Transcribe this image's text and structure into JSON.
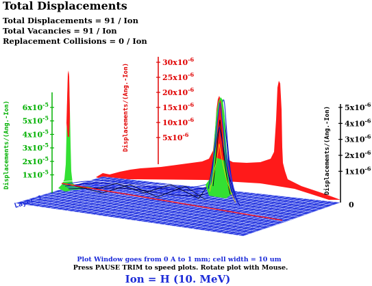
{
  "header": {
    "title": "Total Displacements",
    "stats": [
      "Total Displacements = 91 / Ion",
      "Total Vacancies = 91 / Ion",
      "Replacement Collisions = 0 / Ion"
    ]
  },
  "plot": {
    "left_axis": {
      "label": "Displacements/(Ang.-Ion)",
      "ticks": [
        "6x10",
        "5x10",
        "4x10",
        "3x10",
        "2x10",
        "1x10"
      ],
      "exponent": "-5",
      "color": "#00b000"
    },
    "back_axis": {
      "label": "Displacements/(Ang.-Ion)",
      "ticks": [
        "30x10",
        "25x10",
        "20x10",
        "15x10",
        "10x10",
        "5x10"
      ],
      "exponent": "-6",
      "color": "#e00000"
    },
    "right_axis": {
      "label": "Displacements/(Ang.-Ion)",
      "ticks": [
        "5x10",
        "4x10",
        "3x10",
        "2x10",
        "1x10"
      ],
      "exponent": "-6",
      "zero": "0",
      "color": "#000000"
    },
    "layer_label": "Layer 1"
  },
  "footer": {
    "line1": "Plot Window goes from 0 A to 1 mm;  cell width = 10 um",
    "line2": "Press PAUSE TRIM to speed plots.   Rotate plot with Mouse.",
    "ion": "Ion =  H (10. MeV)"
  },
  "colors": {
    "floor": "#2d3de0",
    "grid": "#cfd6ff",
    "red": "#ff1a1a",
    "green": "#33e033",
    "blue": "#1c2bd8"
  }
}
